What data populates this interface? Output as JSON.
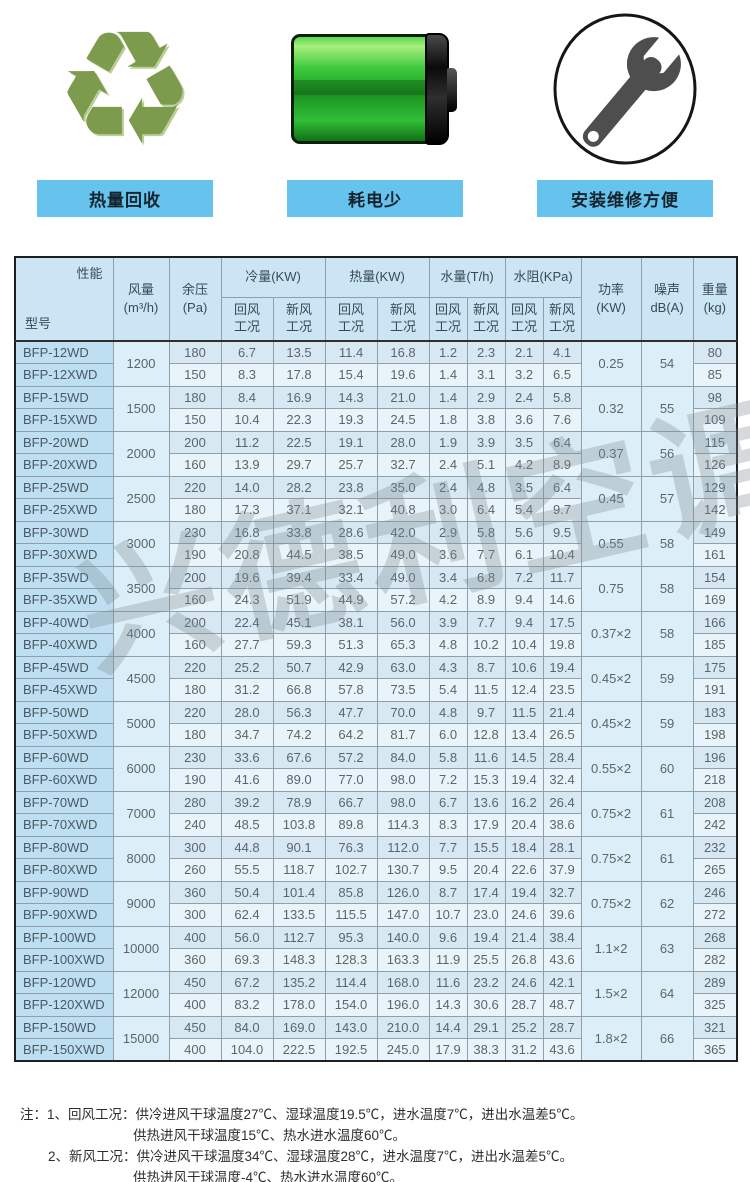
{
  "features": [
    {
      "icon": "recycle-icon",
      "label": "热量回收"
    },
    {
      "icon": "battery-icon",
      "label": "耗电少"
    },
    {
      "icon": "wrench-icon",
      "label": "安装维修方便"
    }
  ],
  "watermark": "兴德利空调",
  "table": {
    "headers": {
      "corner_top": "性能",
      "corner_bottom": "型号",
      "airflow_l1": "风量",
      "airflow_l2": "(m³/h)",
      "pressure_l1": "余压",
      "pressure_l2": "(Pa)",
      "cooling": "冷量(KW)",
      "heating": "热量(KW)",
      "water_flow": "水量(T/h)",
      "water_res": "水阻(KPa)",
      "sub_return": "回风工况",
      "sub_fresh": "新风工况",
      "power_l1": "功率",
      "power_l2": "(KW)",
      "noise_l1": "噪声",
      "noise_l2": "dB(A)",
      "weight_l1": "重量",
      "weight_l2": "(kg)"
    },
    "groups": [
      {
        "airflow": "1200",
        "power": "0.25",
        "noise": "54",
        "rows": [
          {
            "model": "BFP-12WD",
            "values": [
              "180",
              "6.7",
              "13.5",
              "11.4",
              "16.8",
              "1.2",
              "2.3",
              "2.1",
              "4.1"
            ],
            "weight": "80"
          },
          {
            "model": "BFP-12XWD",
            "values": [
              "150",
              "8.3",
              "17.8",
              "15.4",
              "19.6",
              "1.4",
              "3.1",
              "3.2",
              "6.5"
            ],
            "weight": "85"
          }
        ]
      },
      {
        "airflow": "1500",
        "power": "0.32",
        "noise": "55",
        "rows": [
          {
            "model": "BFP-15WD",
            "values": [
              "180",
              "8.4",
              "16.9",
              "14.3",
              "21.0",
              "1.4",
              "2.9",
              "2.4",
              "5.8"
            ],
            "weight": "98"
          },
          {
            "model": "BFP-15XWD",
            "values": [
              "150",
              "10.4",
              "22.3",
              "19.3",
              "24.5",
              "1.8",
              "3.8",
              "3.6",
              "7.6"
            ],
            "weight": "109"
          }
        ]
      },
      {
        "airflow": "2000",
        "power": "0.37",
        "noise": "56",
        "rows": [
          {
            "model": "BFP-20WD",
            "values": [
              "200",
              "11.2",
              "22.5",
              "19.1",
              "28.0",
              "1.9",
              "3.9",
              "3.5",
              "6.4"
            ],
            "weight": "115"
          },
          {
            "model": "BFP-20XWD",
            "values": [
              "160",
              "13.9",
              "29.7",
              "25.7",
              "32.7",
              "2.4",
              "5.1",
              "4.2",
              "8.9"
            ],
            "weight": "126"
          }
        ]
      },
      {
        "airflow": "2500",
        "power": "0.45",
        "noise": "57",
        "rows": [
          {
            "model": "BFP-25WD",
            "values": [
              "220",
              "14.0",
              "28.2",
              "23.8",
              "35.0",
              "2.4",
              "4.8",
              "3.5",
              "6.4"
            ],
            "weight": "129"
          },
          {
            "model": "BFP-25XWD",
            "values": [
              "180",
              "17.3",
              "37.1",
              "32.1",
              "40.8",
              "3.0",
              "6.4",
              "5.4",
              "9.7"
            ],
            "weight": "142"
          }
        ]
      },
      {
        "airflow": "3000",
        "power": "0.55",
        "noise": "58",
        "rows": [
          {
            "model": "BFP-30WD",
            "values": [
              "230",
              "16.8",
              "33.8",
              "28.6",
              "42.0",
              "2.9",
              "5.8",
              "5.6",
              "9.5"
            ],
            "weight": "149"
          },
          {
            "model": "BFP-30XWD",
            "values": [
              "190",
              "20.8",
              "44.5",
              "38.5",
              "49.0",
              "3.6",
              "7.7",
              "6.1",
              "10.4"
            ],
            "weight": "161"
          }
        ]
      },
      {
        "airflow": "3500",
        "power": "0.75",
        "noise": "58",
        "rows": [
          {
            "model": "BFP-35WD",
            "values": [
              "200",
              "19.6",
              "39.4",
              "33.4",
              "49.0",
              "3.4",
              "6.8",
              "7.2",
              "11.7"
            ],
            "weight": "154"
          },
          {
            "model": "BFP-35XWD",
            "values": [
              "160",
              "24.3",
              "51.9",
              "44.9",
              "57.2",
              "4.2",
              "8.9",
              "9.4",
              "14.6"
            ],
            "weight": "169"
          }
        ]
      },
      {
        "airflow": "4000",
        "power": "0.37×2",
        "noise": "58",
        "rows": [
          {
            "model": "BFP-40WD",
            "values": [
              "200",
              "22.4",
              "45.1",
              "38.1",
              "56.0",
              "3.9",
              "7.7",
              "9.4",
              "17.5"
            ],
            "weight": "166"
          },
          {
            "model": "BFP-40XWD",
            "values": [
              "160",
              "27.7",
              "59.3",
              "51.3",
              "65.3",
              "4.8",
              "10.2",
              "10.4",
              "19.8"
            ],
            "weight": "185"
          }
        ]
      },
      {
        "airflow": "4500",
        "power": "0.45×2",
        "noise": "59",
        "rows": [
          {
            "model": "BFP-45WD",
            "values": [
              "220",
              "25.2",
              "50.7",
              "42.9",
              "63.0",
              "4.3",
              "8.7",
              "10.6",
              "19.4"
            ],
            "weight": "175"
          },
          {
            "model": "BFP-45XWD",
            "values": [
              "180",
              "31.2",
              "66.8",
              "57.8",
              "73.5",
              "5.4",
              "11.5",
              "12.4",
              "23.5"
            ],
            "weight": "191"
          }
        ]
      },
      {
        "airflow": "5000",
        "power": "0.45×2",
        "noise": "59",
        "rows": [
          {
            "model": "BFP-50WD",
            "values": [
              "220",
              "28.0",
              "56.3",
              "47.7",
              "70.0",
              "4.8",
              "9.7",
              "11.5",
              "21.4"
            ],
            "weight": "183"
          },
          {
            "model": "BFP-50XWD",
            "values": [
              "180",
              "34.7",
              "74.2",
              "64.2",
              "81.7",
              "6.0",
              "12.8",
              "13.4",
              "26.5"
            ],
            "weight": "198"
          }
        ]
      },
      {
        "airflow": "6000",
        "power": "0.55×2",
        "noise": "60",
        "rows": [
          {
            "model": "BFP-60WD",
            "values": [
              "230",
              "33.6",
              "67.6",
              "57.2",
              "84.0",
              "5.8",
              "11.6",
              "14.5",
              "28.4"
            ],
            "weight": "196"
          },
          {
            "model": "BFP-60XWD",
            "values": [
              "190",
              "41.6",
              "89.0",
              "77.0",
              "98.0",
              "7.2",
              "15.3",
              "19.4",
              "32.4"
            ],
            "weight": "218"
          }
        ]
      },
      {
        "airflow": "7000",
        "power": "0.75×2",
        "noise": "61",
        "rows": [
          {
            "model": "BFP-70WD",
            "values": [
              "280",
              "39.2",
              "78.9",
              "66.7",
              "98.0",
              "6.7",
              "13.6",
              "16.2",
              "26.4"
            ],
            "weight": "208"
          },
          {
            "model": "BFP-70XWD",
            "values": [
              "240",
              "48.5",
              "103.8",
              "89.8",
              "114.3",
              "8.3",
              "17.9",
              "20.4",
              "38.6"
            ],
            "weight": "242"
          }
        ]
      },
      {
        "airflow": "8000",
        "power": "0.75×2",
        "noise": "61",
        "rows": [
          {
            "model": "BFP-80WD",
            "values": [
              "300",
              "44.8",
              "90.1",
              "76.3",
              "112.0",
              "7.7",
              "15.5",
              "18.4",
              "28.1"
            ],
            "weight": "232"
          },
          {
            "model": "BFP-80XWD",
            "values": [
              "260",
              "55.5",
              "118.7",
              "102.7",
              "130.7",
              "9.5",
              "20.4",
              "22.6",
              "37.9"
            ],
            "weight": "265"
          }
        ]
      },
      {
        "airflow": "9000",
        "power": "0.75×2",
        "noise": "62",
        "rows": [
          {
            "model": "BFP-90WD",
            "values": [
              "360",
              "50.4",
              "101.4",
              "85.8",
              "126.0",
              "8.7",
              "17.4",
              "19.4",
              "32.7"
            ],
            "weight": "246"
          },
          {
            "model": "BFP-90XWD",
            "values": [
              "300",
              "62.4",
              "133.5",
              "115.5",
              "147.0",
              "10.7",
              "23.0",
              "24.6",
              "39.6"
            ],
            "weight": "272"
          }
        ]
      },
      {
        "airflow": "10000",
        "power": "1.1×2",
        "noise": "63",
        "rows": [
          {
            "model": "BFP-100WD",
            "values": [
              "400",
              "56.0",
              "112.7",
              "95.3",
              "140.0",
              "9.6",
              "19.4",
              "21.4",
              "38.4"
            ],
            "weight": "268"
          },
          {
            "model": "BFP-100XWD",
            "values": [
              "360",
              "69.3",
              "148.3",
              "128.3",
              "163.3",
              "11.9",
              "25.5",
              "26.8",
              "43.6"
            ],
            "weight": "282"
          }
        ]
      },
      {
        "airflow": "12000",
        "power": "1.5×2",
        "noise": "64",
        "rows": [
          {
            "model": "BFP-120WD",
            "values": [
              "450",
              "67.2",
              "135.2",
              "114.4",
              "168.0",
              "11.6",
              "23.2",
              "24.6",
              "42.1"
            ],
            "weight": "289"
          },
          {
            "model": "BFP-120XWD",
            "values": [
              "400",
              "83.2",
              "178.0",
              "154.0",
              "196.0",
              "14.3",
              "30.6",
              "28.7",
              "48.7"
            ],
            "weight": "325"
          }
        ]
      },
      {
        "airflow": "15000",
        "power": "1.8×2",
        "noise": "66",
        "rows": [
          {
            "model": "BFP-150WD",
            "values": [
              "450",
              "84.0",
              "169.0",
              "143.0",
              "210.0",
              "14.4",
              "29.1",
              "25.2",
              "28.7"
            ],
            "weight": "321"
          },
          {
            "model": "BFP-150XWD",
            "values": [
              "400",
              "104.0",
              "222.5",
              "192.5",
              "245.0",
              "17.9",
              "38.3",
              "31.2",
              "43.6"
            ],
            "weight": "365"
          }
        ]
      }
    ]
  },
  "notes": [
    "注：1、回风工况：供冷进风干球温度27℃、湿球温度19.5℃，进水温度7℃，进出水温差5℃。",
    "供热进风干球温度15℃、热水进水温度60℃。",
    "2、新风工况：供冷进风干球温度34℃、湿球温度28℃，进水温度7℃，进出水温差5℃。",
    "供热进风干球温度-4℃、热水进水温度60℃。"
  ],
  "colors": {
    "feature_label_bg": "#65c3ee",
    "header_bg": "#cbe5f4",
    "model_col_bg": "#bedff2",
    "row_a_bg": "#d7e8f2",
    "row_b_bg": "#e9f4fa",
    "battery_green": "#23ab29",
    "recycle_green": "#7c9b4d"
  }
}
